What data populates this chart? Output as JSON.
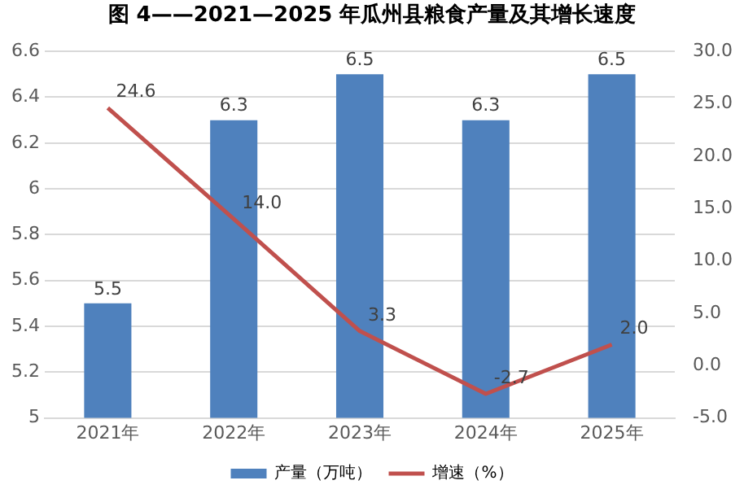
{
  "chart_data": {
    "type": "bar",
    "title": "图 4——2021—2025 年瓜州县粮食产量及其增长速度",
    "categories": [
      "2021年",
      "2022年",
      "2023年",
      "2024年",
      "2025年"
    ],
    "series": [
      {
        "name": "产量（万吨）",
        "color": "#4f81bd",
        "values": [
          5.5,
          6.3,
          6.5,
          6.3,
          6.5
        ],
        "value_labels": [
          "5.5",
          "6.3",
          "6.5",
          "6.3",
          "6.5"
        ]
      },
      {
        "name": "增速（%）",
        "type": "line",
        "axis": "y2",
        "color": "#c0504d",
        "values": [
          24.6,
          14.0,
          3.3,
          -2.7,
          2.0
        ],
        "value_labels": [
          "24.6",
          "14.0",
          "3.3",
          "-2.7",
          "2.0"
        ]
      }
    ],
    "ylim": [
      5,
      6.6
    ],
    "yticks": [
      5,
      5.2,
      5.4,
      5.6,
      5.8,
      6,
      6.2,
      6.4,
      6.6
    ],
    "y2lim": [
      -5,
      30
    ],
    "y2ticks": [
      {
        "value": -5,
        "label": "-5.0"
      },
      {
        "value": 0,
        "label": "0.0"
      },
      {
        "value": 5,
        "label": "5.0"
      },
      {
        "value": 10,
        "label": "10.0"
      },
      {
        "value": 15,
        "label": "15.0"
      },
      {
        "value": 20,
        "label": "20.0"
      },
      {
        "value": 25,
        "label": "25.0"
      },
      {
        "value": 30,
        "label": "30.0"
      }
    ],
    "grid": "y",
    "legend": "bottom",
    "marker": "none",
    "line_style": "solid"
  }
}
